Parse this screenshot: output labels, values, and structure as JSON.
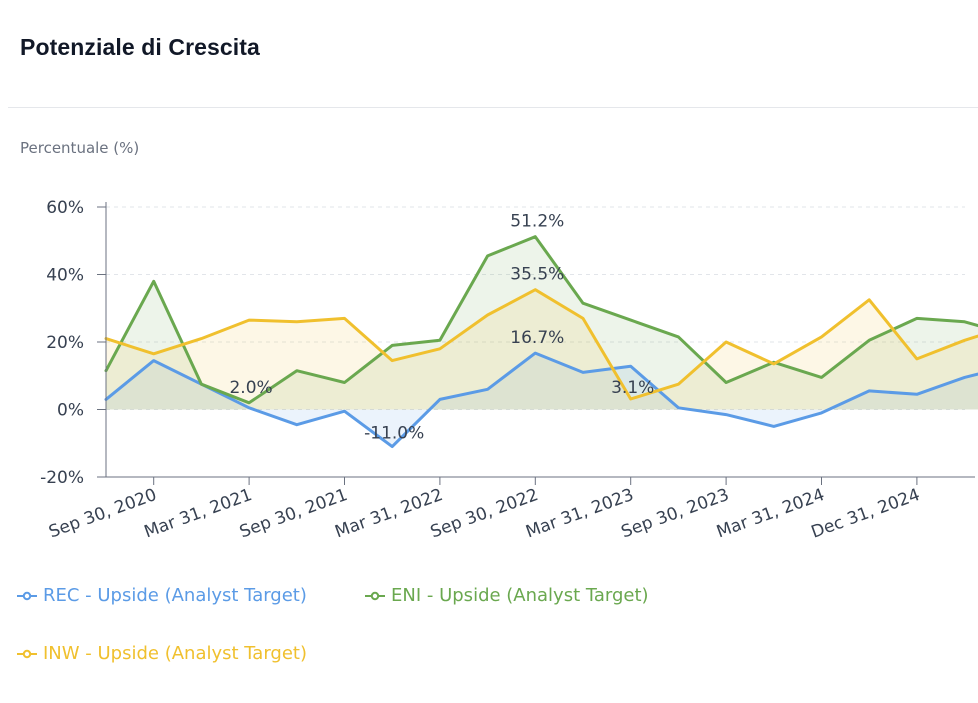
{
  "header": {
    "title": "Potenziale di Crescita"
  },
  "chart_data": {
    "type": "line",
    "title": "Potenziale di Crescita",
    "ylabel": "Percentuale (%)",
    "ylim": [
      -20,
      60
    ],
    "yticks": [
      60,
      40,
      20,
      0,
      -20
    ],
    "ytick_labels": [
      "60%",
      "40%",
      "20%",
      "0%",
      "-20%"
    ],
    "area_fill": true,
    "grid": true,
    "legend_position": "bottom-left",
    "x_tick_labels": [
      "Sep 30, 2020",
      "Mar 31, 2021",
      "Sep 30, 2021",
      "Mar 31, 2022",
      "Sep 30, 2022",
      "Mar 31, 2023",
      "Sep 30, 2023",
      "Mar 31, 2024",
      "Dec 31, 2024"
    ],
    "x": [
      "Jun 30, 2020",
      "Sep 30, 2020",
      "Dec 31, 2020",
      "Mar 31, 2021",
      "Jun 30, 2021",
      "Sep 30, 2021",
      "Dec 31, 2021",
      "Mar 31, 2022",
      "Jun 30, 2022",
      "Sep 30, 2022",
      "Dec 31, 2022",
      "Mar 31, 2023",
      "Jun 30, 2023",
      "Sep 30, 2023",
      "Dec 31, 2023",
      "Mar 31, 2024",
      "Jun 30, 2024",
      "Sep 30, 2024",
      "Dec 31, 2024",
      "Mar 31, 2025"
    ],
    "series": [
      {
        "name": "REC - Upside (Analyst Target)",
        "color": "#5b9be6",
        "values": [
          3.0,
          14.5,
          7.5,
          0.5,
          -4.5,
          -0.5,
          -11.0,
          3.0,
          6.0,
          16.7,
          11.0,
          12.8,
          0.5,
          -1.5,
          -5.0,
          -1.0,
          5.5,
          4.5,
          9.5,
          13.0
        ]
      },
      {
        "name": "ENI - Upside (Analyst Target)",
        "color": "#6aa84f",
        "values": [
          11.5,
          38.0,
          7.5,
          2.0,
          11.5,
          8.0,
          19.0,
          20.5,
          45.5,
          51.2,
          31.5,
          26.5,
          21.5,
          8.0,
          14.0,
          9.5,
          20.5,
          27.0,
          26.0,
          22.0
        ]
      },
      {
        "name": "INW - Upside (Analyst Target)",
        "color": "#f0c02e",
        "values": [
          21.0,
          16.5,
          21.0,
          26.5,
          26.0,
          27.0,
          14.5,
          18.0,
          28.0,
          35.5,
          27.0,
          3.1,
          7.5,
          20.0,
          13.5,
          21.5,
          32.5,
          15.0,
          20.5,
          25.0
        ]
      }
    ],
    "annotations": [
      {
        "series": 1,
        "index": 3,
        "label": "2.0%"
      },
      {
        "series": 0,
        "index": 6,
        "label": "-11.0%"
      },
      {
        "series": 1,
        "index": 9,
        "label": "51.2%"
      },
      {
        "series": 2,
        "index": 9,
        "label": "35.5%"
      },
      {
        "series": 0,
        "index": 9,
        "label": "16.7%"
      },
      {
        "series": 2,
        "index": 11,
        "label": "3.1%"
      }
    ]
  }
}
